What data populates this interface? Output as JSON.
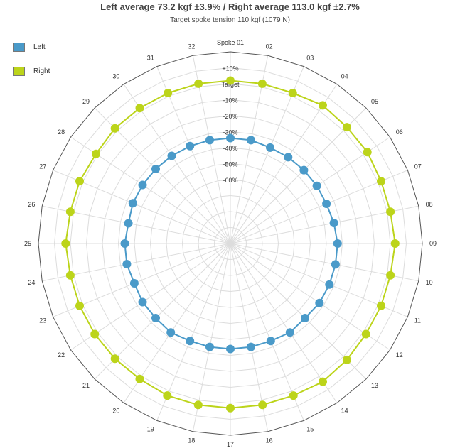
{
  "chart_data": {
    "type": "radar",
    "title": "Left average 73.2 kgf ±3.9% / Right average 113.0 kgf ±2.7%",
    "subtitle": "Target spoke tension 110 kgf (1079 N)",
    "categories": [
      "Spoke 01",
      "02",
      "03",
      "04",
      "05",
      "06",
      "07",
      "08",
      "09",
      "10",
      "11",
      "12",
      "13",
      "14",
      "15",
      "16",
      "17",
      "18",
      "19",
      "20",
      "21",
      "22",
      "23",
      "24",
      "25",
      "26",
      "27",
      "28",
      "29",
      "30",
      "31",
      "32"
    ],
    "radial_labels": [
      "+10%",
      "Target",
      "-10%",
      "-20%",
      "-30%",
      "-40%",
      "-50%",
      "-60%"
    ],
    "radial_label_values": [
      10,
      0,
      -10,
      -20,
      -30,
      -40,
      -50,
      -60
    ],
    "rlim": [
      -100,
      20
    ],
    "grid": true,
    "legend_position": "top-left",
    "series": [
      {
        "name": "Left",
        "color": "#4a9ac9",
        "values": [
          -34,
          -34,
          -35,
          -35,
          -35,
          -35,
          -35,
          -34,
          -33,
          -33,
          -33,
          -33,
          -34,
          -33,
          -34,
          -34,
          -34,
          -34,
          -34,
          -33,
          -34,
          -34,
          -35,
          -34,
          -34,
          -35,
          -34,
          -34,
          -34,
          -34,
          -34,
          -34
        ]
      },
      {
        "name": "Right",
        "color": "#bcd41a",
        "values": [
          2,
          2,
          2,
          4,
          3,
          3,
          2,
          2,
          3,
          2,
          2,
          2,
          3,
          4,
          3,
          3,
          3,
          3,
          3,
          2,
          2,
          2,
          2,
          2,
          3,
          2,
          2,
          1,
          2,
          2,
          2,
          2
        ]
      }
    ]
  }
}
